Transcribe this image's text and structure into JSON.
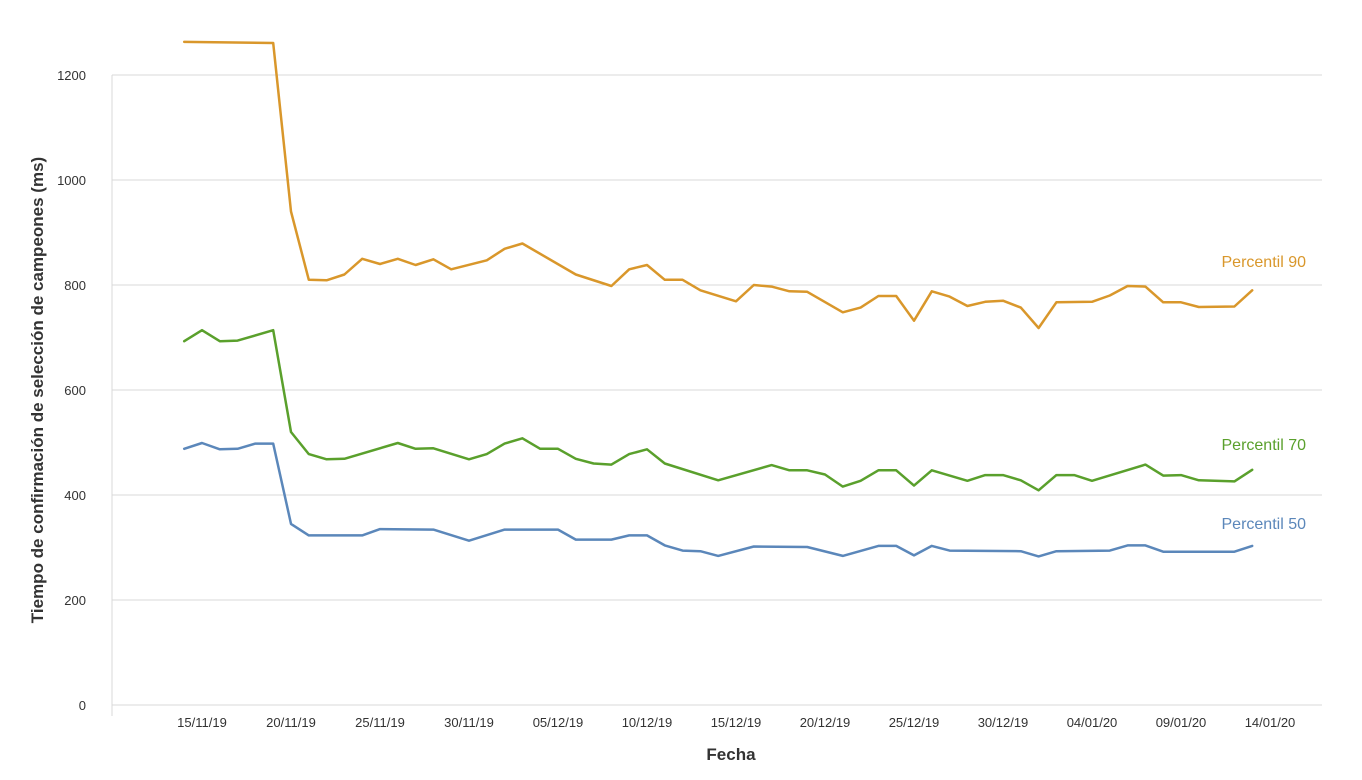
{
  "chart_data": {
    "type": "line",
    "xlabel": "Fecha",
    "ylabel": "Tiempo de confirmación de selección de campeones (ms)",
    "ylim": [
      0,
      1200
    ],
    "y_ticks": [
      0,
      200,
      400,
      600,
      800,
      1000,
      1200
    ],
    "x_tick_labels": [
      "15/11/19",
      "20/11/19",
      "25/11/19",
      "30/11/19",
      "05/12/19",
      "10/12/19",
      "15/12/19",
      "20/12/19",
      "25/12/19",
      "30/12/19",
      "04/01/20",
      "09/01/20",
      "14/01/20"
    ],
    "grid": true,
    "legend": "inline labels at right end of lines",
    "series": [
      {
        "name": "Percentil 90",
        "color": "#d9972b",
        "points": [
          [
            "2019-11-14",
            1263
          ],
          [
            "2019-11-19",
            1261
          ],
          [
            "2019-11-20",
            940
          ],
          [
            "2019-11-21",
            810
          ],
          [
            "2019-11-22",
            809
          ],
          [
            "2019-11-23",
            820
          ],
          [
            "2019-11-24",
            850
          ],
          [
            "2019-11-25",
            840
          ],
          [
            "2019-11-26",
            850
          ],
          [
            "2019-11-27",
            838
          ],
          [
            "2019-11-28",
            849
          ],
          [
            "2019-11-29",
            830
          ],
          [
            "2019-12-01",
            847
          ],
          [
            "2019-12-02",
            869
          ],
          [
            "2019-12-03",
            879
          ],
          [
            "2019-12-06",
            820
          ],
          [
            "2019-12-08",
            798
          ],
          [
            "2019-12-09",
            830
          ],
          [
            "2019-12-10",
            838
          ],
          [
            "2019-12-11",
            810
          ],
          [
            "2019-12-12",
            810
          ],
          [
            "2019-12-13",
            790
          ],
          [
            "2019-12-15",
            769
          ],
          [
            "2019-12-16",
            800
          ],
          [
            "2019-12-17",
            797
          ],
          [
            "2019-12-18",
            788
          ],
          [
            "2019-12-19",
            787
          ],
          [
            "2019-12-21",
            748
          ],
          [
            "2019-12-22",
            757
          ],
          [
            "2019-12-23",
            779
          ],
          [
            "2019-12-24",
            779
          ],
          [
            "2019-12-25",
            732
          ],
          [
            "2019-12-26",
            788
          ],
          [
            "2019-12-27",
            778
          ],
          [
            "2019-12-28",
            760
          ],
          [
            "2019-12-29",
            768
          ],
          [
            "2019-12-30",
            770
          ],
          [
            "2019-12-31",
            757
          ],
          [
            "2020-01-01",
            718
          ],
          [
            "2020-01-02",
            767
          ],
          [
            "2020-01-04",
            768
          ],
          [
            "2020-01-05",
            780
          ],
          [
            "2020-01-06",
            798
          ],
          [
            "2020-01-07",
            797
          ],
          [
            "2020-01-08",
            767
          ],
          [
            "2020-01-09",
            767
          ],
          [
            "2020-01-10",
            758
          ],
          [
            "2020-01-12",
            759
          ],
          [
            "2020-01-13",
            790
          ]
        ]
      },
      {
        "name": "Percentil 70",
        "color": "#5aa02c",
        "points": [
          [
            "2019-11-14",
            693
          ],
          [
            "2019-11-15",
            714
          ],
          [
            "2019-11-16",
            693
          ],
          [
            "2019-11-17",
            694
          ],
          [
            "2019-11-19",
            714
          ],
          [
            "2019-11-20",
            520
          ],
          [
            "2019-11-21",
            478
          ],
          [
            "2019-11-22",
            468
          ],
          [
            "2019-11-23",
            469
          ],
          [
            "2019-11-26",
            499
          ],
          [
            "2019-11-27",
            488
          ],
          [
            "2019-11-28",
            489
          ],
          [
            "2019-11-30",
            468
          ],
          [
            "2019-12-01",
            478
          ],
          [
            "2019-12-02",
            498
          ],
          [
            "2019-12-03",
            508
          ],
          [
            "2019-12-04",
            488
          ],
          [
            "2019-12-05",
            488
          ],
          [
            "2019-12-06",
            469
          ],
          [
            "2019-12-07",
            460
          ],
          [
            "2019-12-08",
            458
          ],
          [
            "2019-12-09",
            478
          ],
          [
            "2019-12-10",
            487
          ],
          [
            "2019-12-11",
            460
          ],
          [
            "2019-12-14",
            428
          ],
          [
            "2019-12-17",
            457
          ],
          [
            "2019-12-18",
            447
          ],
          [
            "2019-12-19",
            447
          ],
          [
            "2019-12-20",
            439
          ],
          [
            "2019-12-21",
            416
          ],
          [
            "2019-12-22",
            427
          ],
          [
            "2019-12-23",
            447
          ],
          [
            "2019-12-24",
            447
          ],
          [
            "2019-12-25",
            418
          ],
          [
            "2019-12-26",
            447
          ],
          [
            "2019-12-28",
            427
          ],
          [
            "2019-12-29",
            438
          ],
          [
            "2019-12-30",
            438
          ],
          [
            "2019-12-31",
            428
          ],
          [
            "2020-01-01",
            409
          ],
          [
            "2020-01-02",
            438
          ],
          [
            "2020-01-03",
            438
          ],
          [
            "2020-01-04",
            427
          ],
          [
            "2020-01-07",
            458
          ],
          [
            "2020-01-08",
            437
          ],
          [
            "2020-01-09",
            438
          ],
          [
            "2020-01-10",
            428
          ],
          [
            "2020-01-12",
            426
          ],
          [
            "2020-01-13",
            448
          ]
        ]
      },
      {
        "name": "Percentil 50",
        "color": "#5b87ba",
        "points": [
          [
            "2019-11-14",
            488
          ],
          [
            "2019-11-15",
            499
          ],
          [
            "2019-11-16",
            487
          ],
          [
            "2019-11-17",
            488
          ],
          [
            "2019-11-18",
            498
          ],
          [
            "2019-11-19",
            498
          ],
          [
            "2019-11-20",
            345
          ],
          [
            "2019-11-21",
            323
          ],
          [
            "2019-11-24",
            323
          ],
          [
            "2019-11-25",
            335
          ],
          [
            "2019-11-28",
            334
          ],
          [
            "2019-11-30",
            313
          ],
          [
            "2019-12-02",
            334
          ],
          [
            "2019-12-05",
            334
          ],
          [
            "2019-12-06",
            315
          ],
          [
            "2019-12-08",
            315
          ],
          [
            "2019-12-09",
            323
          ],
          [
            "2019-12-10",
            323
          ],
          [
            "2019-12-11",
            304
          ],
          [
            "2019-12-12",
            294
          ],
          [
            "2019-12-13",
            293
          ],
          [
            "2019-12-14",
            284
          ],
          [
            "2019-12-16",
            302
          ],
          [
            "2019-12-19",
            301
          ],
          [
            "2019-12-21",
            284
          ],
          [
            "2019-12-23",
            303
          ],
          [
            "2019-12-24",
            303
          ],
          [
            "2019-12-25",
            285
          ],
          [
            "2019-12-26",
            303
          ],
          [
            "2019-12-27",
            294
          ],
          [
            "2019-12-31",
            293
          ],
          [
            "2020-01-01",
            283
          ],
          [
            "2020-01-02",
            293
          ],
          [
            "2020-01-05",
            294
          ],
          [
            "2020-01-06",
            304
          ],
          [
            "2020-01-07",
            304
          ],
          [
            "2020-01-08",
            292
          ],
          [
            "2020-01-12",
            292
          ],
          [
            "2020-01-13",
            303
          ]
        ]
      }
    ]
  }
}
